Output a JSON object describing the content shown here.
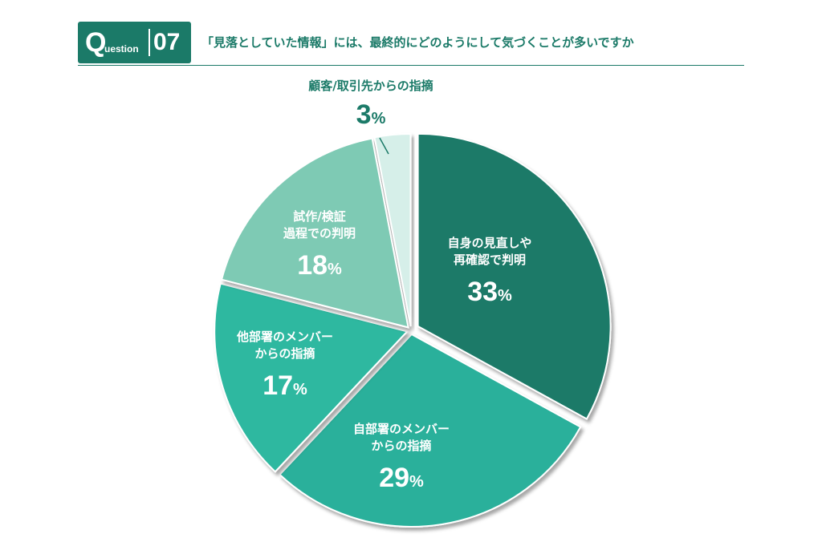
{
  "header": {
    "q_letter": "Q",
    "q_rest": "uestion",
    "number": "07",
    "question": "「見落としていた情報」には、最終的にどのようにして気づくことが多いですか"
  },
  "colors": {
    "brand": "#1b7a68",
    "slices": [
      "#1b7a68",
      "#2ab09b",
      "#2fb8a0",
      "#7ecab4",
      "#d6efe9"
    ]
  },
  "chart_data": {
    "type": "pie",
    "title": "",
    "unit": "%",
    "start": "12 o'clock, clockwise",
    "slices": [
      {
        "label_lines": [
          "自身の見直しや",
          "再確認で判明"
        ],
        "value": 33,
        "text": "33"
      },
      {
        "label_lines": [
          "自部署のメンバー",
          "からの指摘"
        ],
        "value": 29,
        "text": "29"
      },
      {
        "label_lines": [
          "他部署のメンバー",
          "からの指摘"
        ],
        "value": 17,
        "text": "17"
      },
      {
        "label_lines": [
          "試作/検証",
          "過程での判明"
        ],
        "value": 18,
        "text": "18"
      },
      {
        "label_lines": [
          "顧客/取引先からの指摘"
        ],
        "value": 3,
        "text": "3"
      }
    ]
  }
}
